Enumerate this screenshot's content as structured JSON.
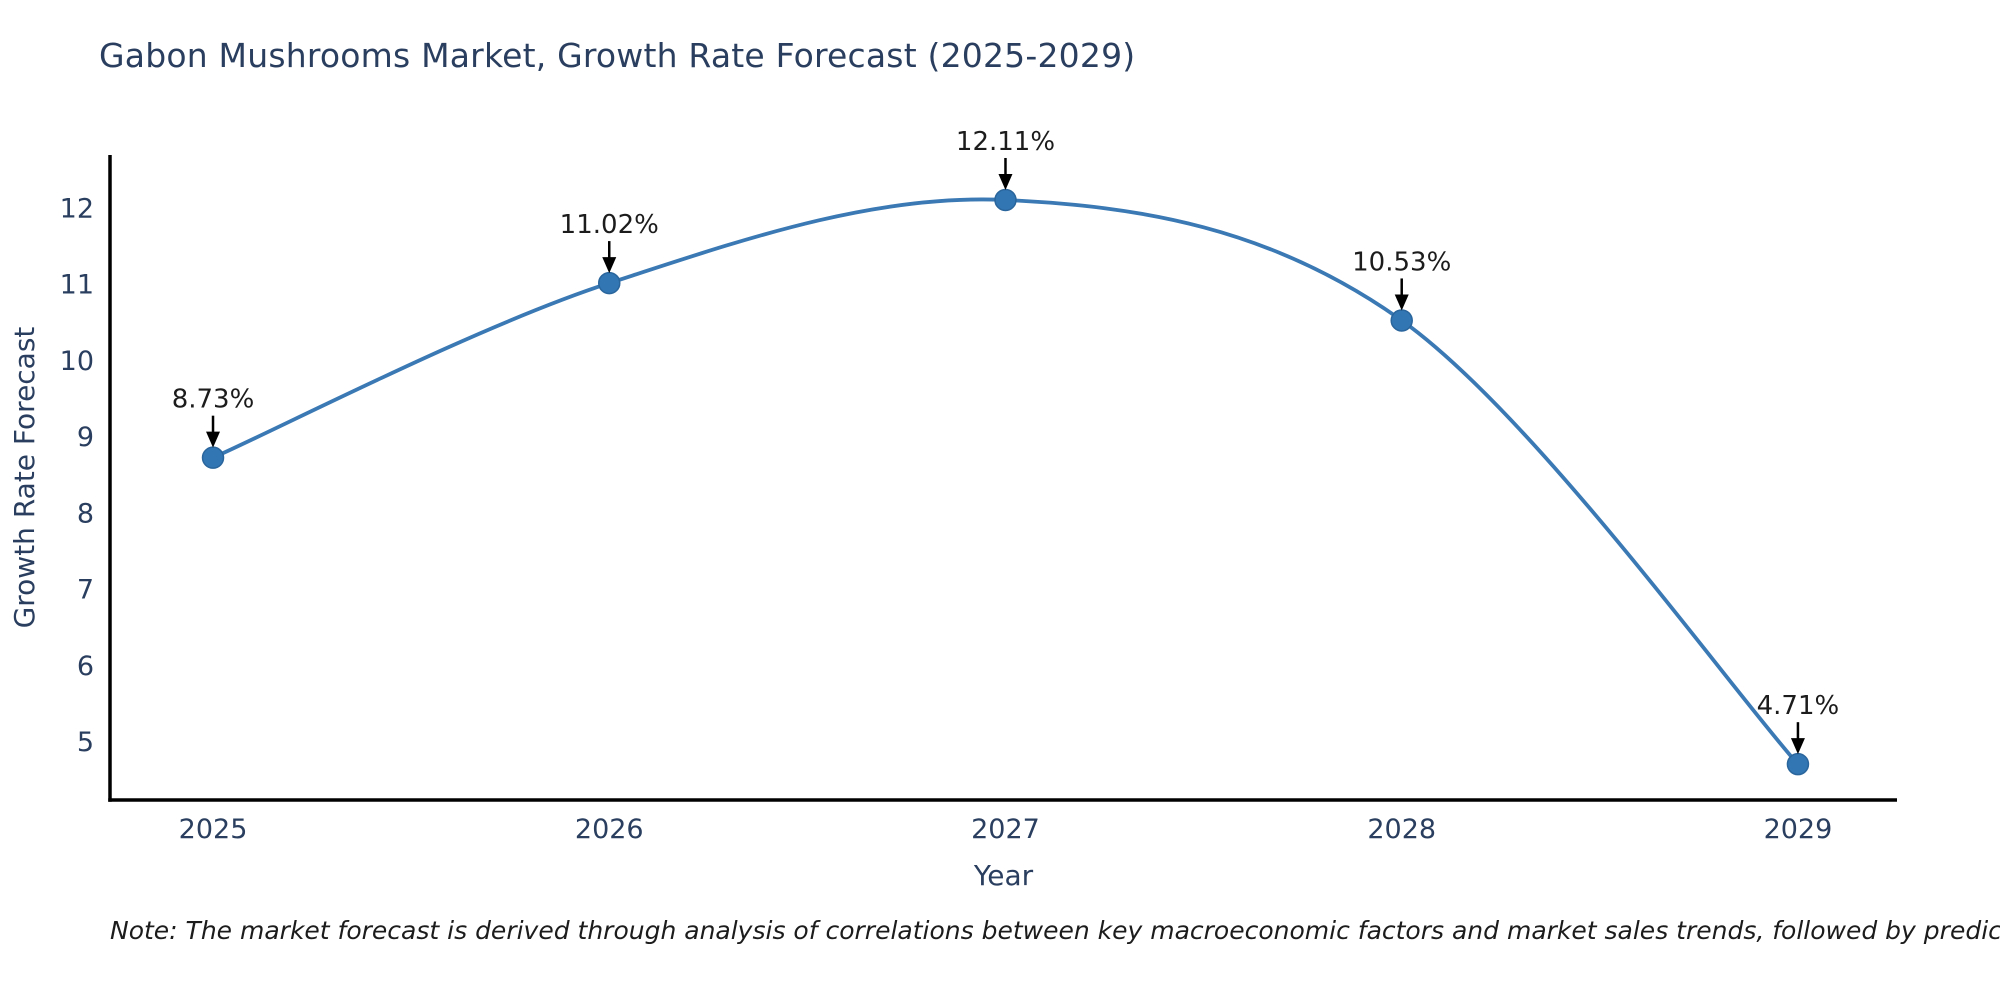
{
  "chart_data": {
    "type": "line",
    "title": "Gabon Mushrooms Market, Growth Rate Forecast (2025-2029)",
    "x": [
      2025,
      2026,
      2027,
      2028,
      2029
    ],
    "series": [
      {
        "name": "Growth Rate Forecast",
        "values": [
          8.73,
          11.02,
          12.11,
          10.53,
          4.71
        ],
        "point_labels": [
          "8.73%",
          "11.02%",
          "12.11%",
          "10.53%",
          "4.71%"
        ]
      }
    ],
    "xlabel": "Year",
    "ylabel": "Growth Rate Forecast",
    "xticks": [
      "2025",
      "2026",
      "2027",
      "2028",
      "2029"
    ],
    "yticks": [
      5,
      6,
      7,
      8,
      9,
      10,
      11,
      12
    ],
    "xlim": [
      2024.74,
      2029.25
    ],
    "ylim": [
      4.24,
      12.7
    ],
    "line_shape": "spline",
    "grid": false,
    "legend_visible": false,
    "colors": {
      "line": "#3a79b4",
      "marker_fill": "#3276b4",
      "marker_edge": "#2a659c",
      "axis_line": "#000000",
      "tick_text": "#2a3f5f",
      "axis_title_text": "#2a3f5f",
      "title_text": "#2a3f5f",
      "annotation_text": "#1c1c1c",
      "annotation_arrow": "#000000"
    }
  },
  "note": {
    "text": "Note: The market forecast is derived through analysis of correlations between key macroeconomic factors and market sales trends, followed by predictive modeling to project future sales"
  }
}
